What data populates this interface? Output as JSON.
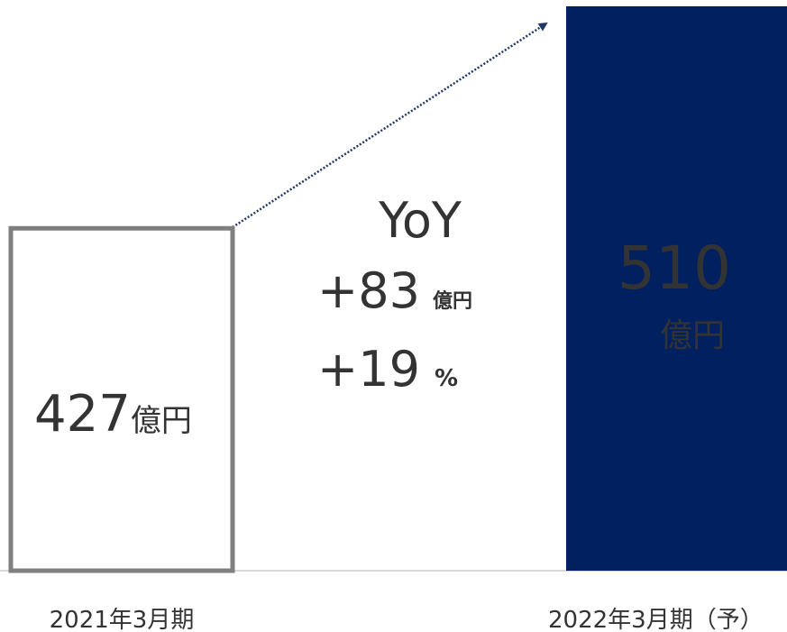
{
  "chart_data": {
    "type": "bar",
    "categories": [
      "2021年3月期",
      "2022年3月期（予）"
    ],
    "values": [
      427,
      510
    ],
    "value_labels": [
      "427",
      "510"
    ],
    "unit": "億円",
    "colors": [
      "#7f7f7f",
      "#002060"
    ],
    "outline": [
      true,
      false
    ],
    "ylim": [
      299,
      510
    ],
    "annotation": {
      "title": "YoY",
      "diff": "+83",
      "diff_unit": "億円",
      "rate": "+19",
      "rate_unit": "%"
    }
  }
}
